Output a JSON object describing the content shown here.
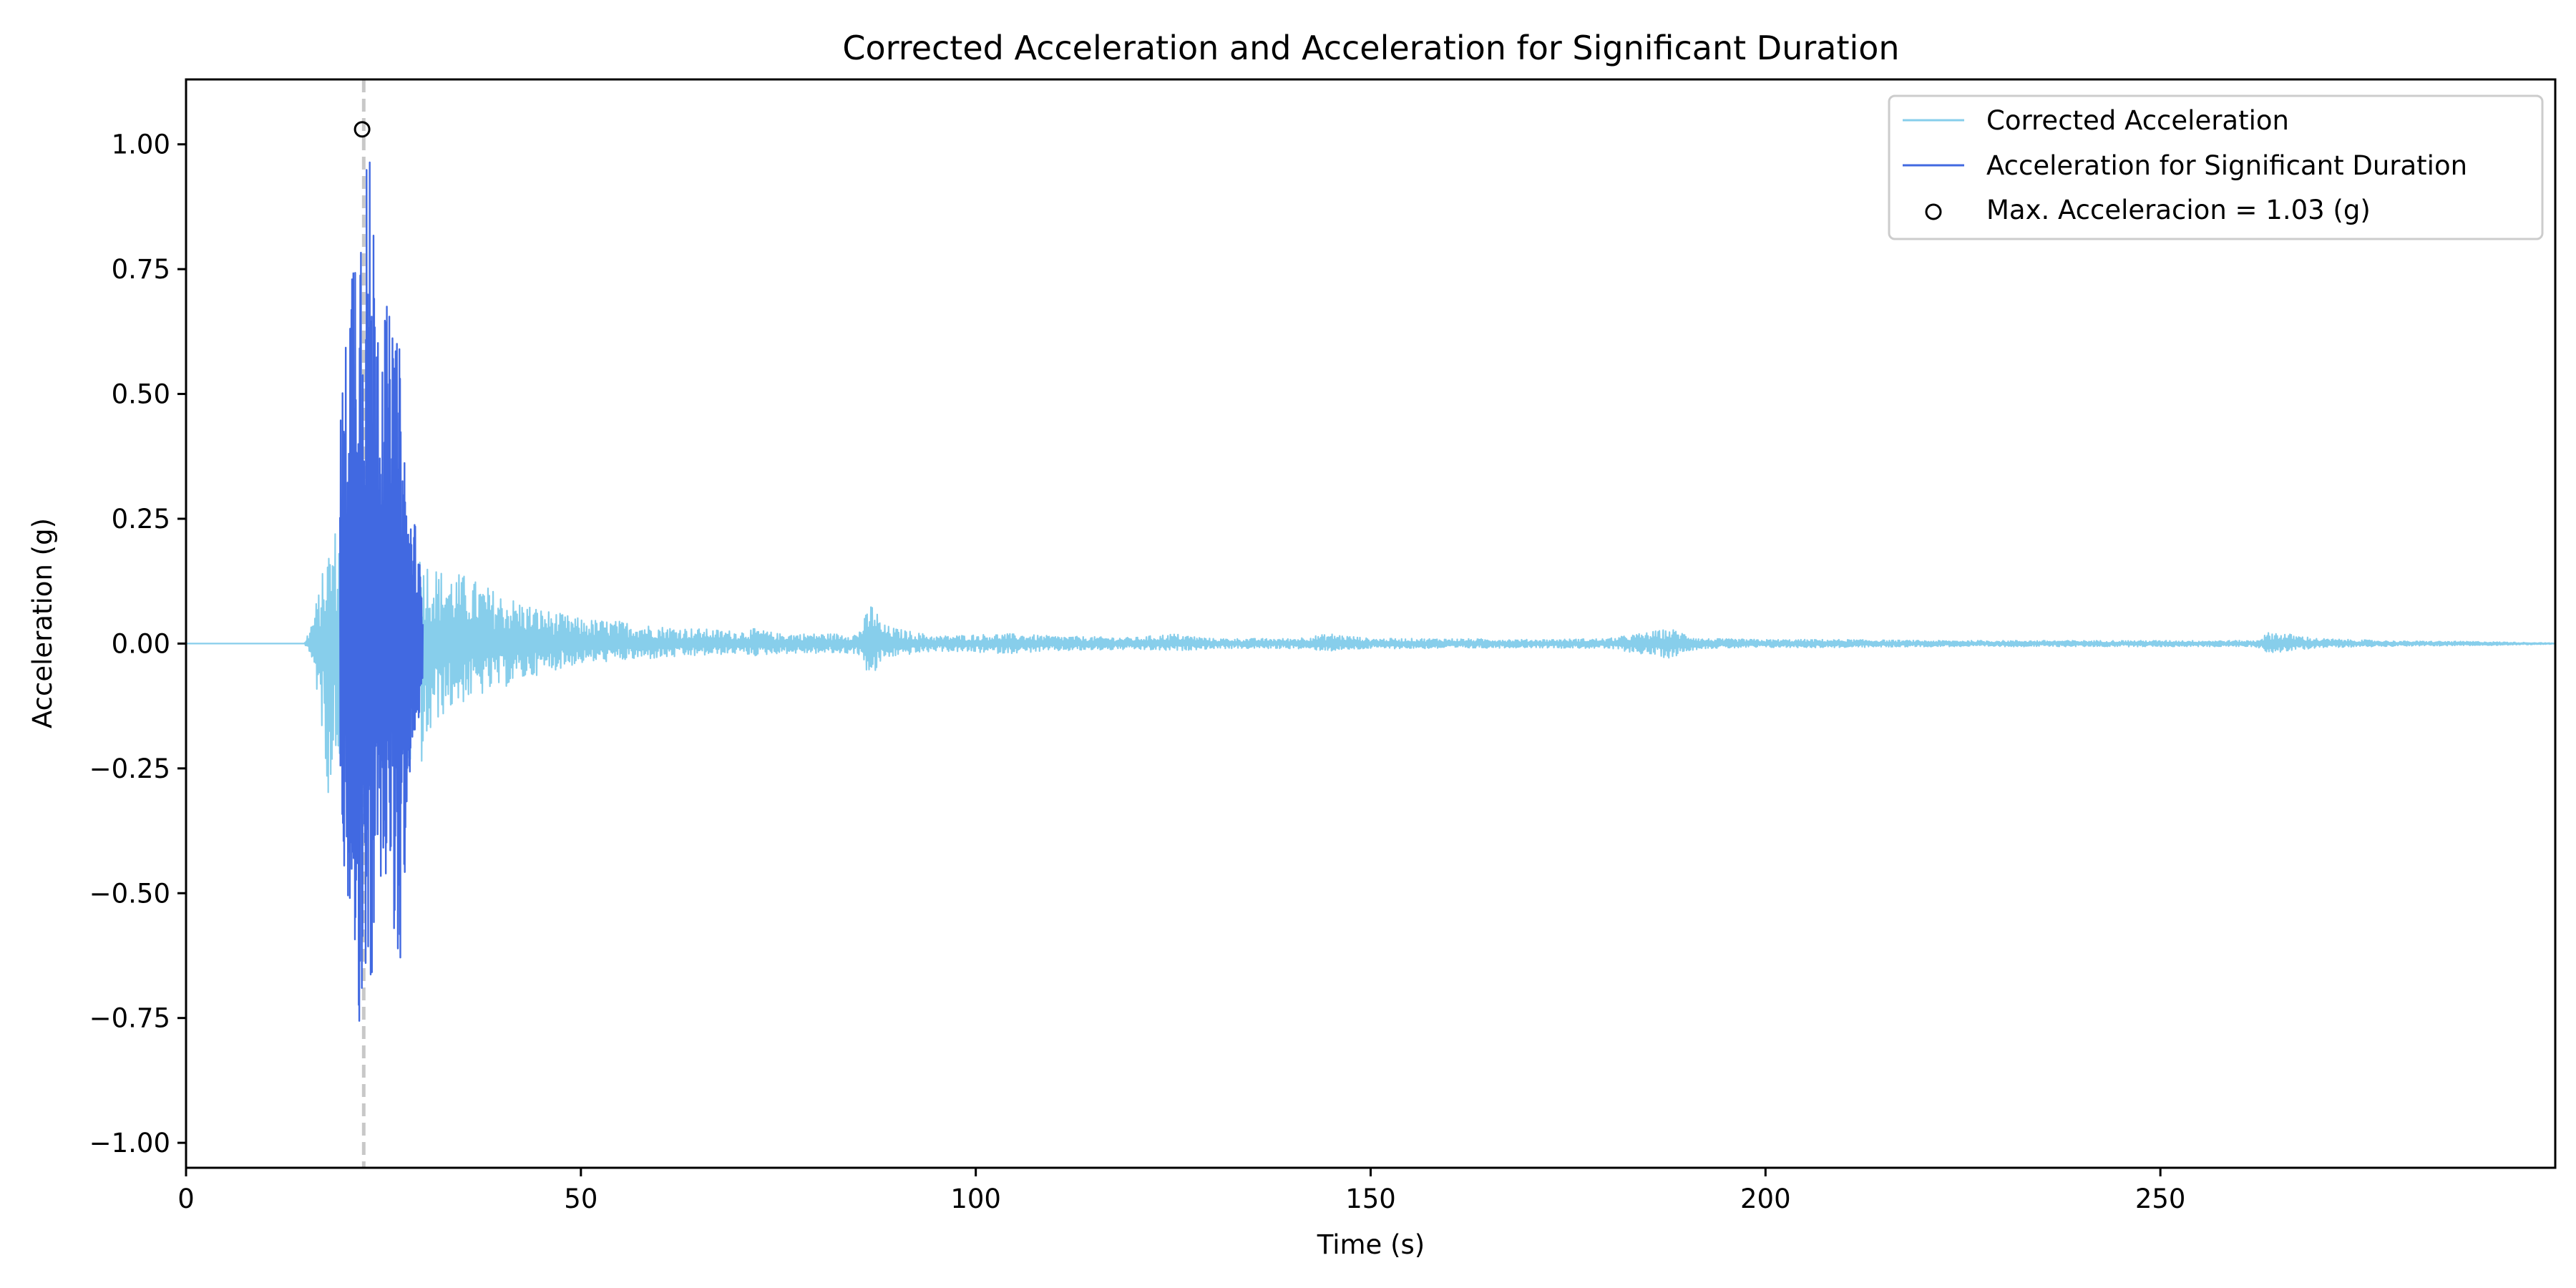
{
  "chart_data": {
    "type": "line",
    "title": "Corrected Acceleration and Acceleration for Significant Duration",
    "xlabel": "Time (s)",
    "ylabel": "Acceleration (g)",
    "xlim": [
      0,
      300
    ],
    "ylim": [
      -1.05,
      1.13
    ],
    "xticks": [
      0,
      50,
      100,
      150,
      200,
      250
    ],
    "xtick_labels": [
      "0",
      "50",
      "100",
      "150",
      "200",
      "250"
    ],
    "yticks": [
      -1.0,
      -0.75,
      -0.5,
      -0.25,
      0.0,
      0.25,
      0.5,
      0.75,
      1.0
    ],
    "ytick_labels": [
      "−1.00",
      "−0.75",
      "−0.50",
      "−0.25",
      "0.00",
      "0.25",
      "0.50",
      "0.75",
      "1.00"
    ],
    "grid": false,
    "legend_position": "top-right",
    "peak_time_line": {
      "x": 22.5,
      "style": "dashed",
      "color": "#c8c8c8"
    },
    "series": [
      {
        "name": "Corrected Acceleration",
        "color": "#87ceeb",
        "envelope": {
          "t": [
            0,
            15,
            16,
            17,
            18,
            19,
            20,
            22,
            24,
            26,
            28,
            30,
            32,
            35,
            40,
            45,
            50,
            55,
            60,
            65,
            70,
            72,
            75,
            80,
            85,
            87,
            88,
            90,
            95,
            100,
            104,
            110,
            120,
            125,
            130,
            140,
            145,
            150,
            160,
            170,
            180,
            188,
            190,
            192,
            200,
            210,
            220,
            230,
            240,
            250,
            262,
            264,
            270,
            280,
            290,
            300
          ],
          "pos": [
            0,
            0,
            0.05,
            0.12,
            0.2,
            0.24,
            0.2,
            0.2,
            0.2,
            0.2,
            0.2,
            0.18,
            0.15,
            0.14,
            0.1,
            0.07,
            0.05,
            0.045,
            0.035,
            0.03,
            0.025,
            0.03,
            0.02,
            0.02,
            0.02,
            0.09,
            0.04,
            0.03,
            0.015,
            0.018,
            0.02,
            0.015,
            0.012,
            0.02,
            0.01,
            0.01,
            0.02,
            0.01,
            0.01,
            0.008,
            0.01,
            0.03,
            0.02,
            0.01,
            0.008,
            0.008,
            0.006,
            0.006,
            0.006,
            0.006,
            0.006,
            0.025,
            0.01,
            0.005,
            0.004,
            0.001
          ],
          "neg": [
            0,
            0,
            -0.04,
            -0.14,
            -0.3,
            -0.25,
            -0.2,
            -0.2,
            -0.2,
            -0.22,
            -0.26,
            -0.25,
            -0.15,
            -0.12,
            -0.09,
            -0.06,
            -0.04,
            -0.035,
            -0.03,
            -0.025,
            -0.02,
            -0.025,
            -0.02,
            -0.02,
            -0.02,
            -0.08,
            -0.035,
            -0.025,
            -0.015,
            -0.018,
            -0.02,
            -0.015,
            -0.012,
            -0.015,
            -0.01,
            -0.01,
            -0.015,
            -0.01,
            -0.01,
            -0.008,
            -0.01,
            -0.03,
            -0.015,
            -0.01,
            -0.008,
            -0.008,
            -0.006,
            -0.006,
            -0.006,
            -0.006,
            -0.006,
            -0.02,
            -0.008,
            -0.005,
            -0.004,
            -0.001
          ]
        }
      },
      {
        "name": "Acceleration for Significant Duration",
        "color": "#4169e1",
        "envelope": {
          "t": [
            19.5,
            20,
            21,
            22,
            22.5,
            23,
            24,
            25,
            26,
            27,
            28,
            29,
            30
          ],
          "pos": [
            0.5,
            0.55,
            0.85,
            0.95,
            1.03,
            1.03,
            0.85,
            0.7,
            0.65,
            0.6,
            0.3,
            0.25,
            0.1
          ],
          "neg": [
            -0.45,
            -0.5,
            -0.6,
            -0.85,
            -0.6,
            -0.95,
            -0.5,
            -0.45,
            -0.5,
            -0.77,
            -0.35,
            -0.2,
            -0.1
          ]
        }
      }
    ],
    "max_point": {
      "name": "Max. Acceleracion = 1.03 (g)",
      "x": 22.3,
      "y": 1.03,
      "marker": "hollow-circle"
    }
  }
}
